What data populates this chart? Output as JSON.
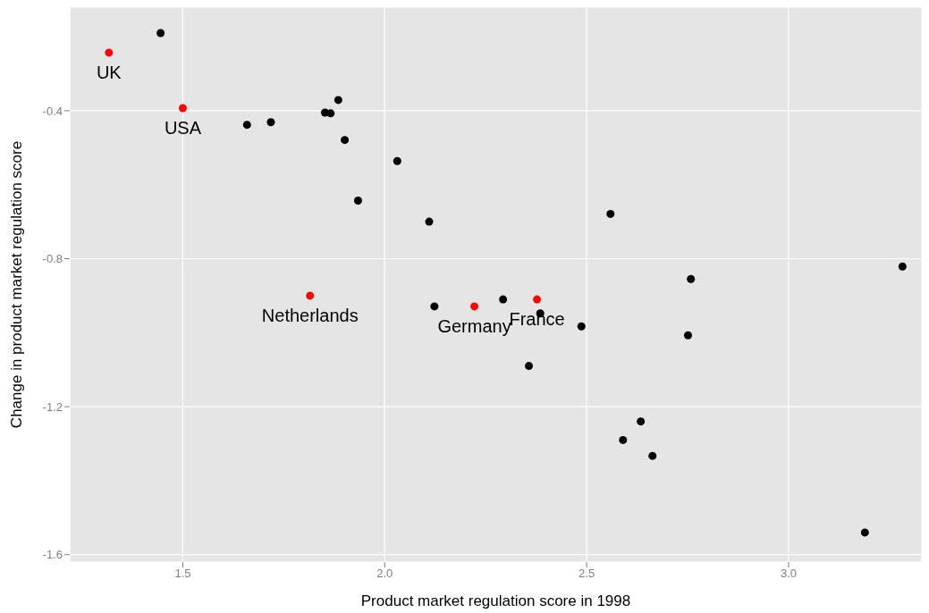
{
  "chart_data": {
    "type": "scatter",
    "xlabel": "Product market regulation score in 1998",
    "ylabel": "Change in product market regulation score",
    "xlim": [
      1.22,
      3.33
    ],
    "xticks": [
      1.5,
      {
        "value": 2,
        "label": "2.0"
      },
      2.5,
      {
        "value": 3,
        "label": "3.0"
      }
    ],
    "ylim": [
      -1.62,
      -0.12
    ],
    "yticks": [
      -1.6,
      -1.2,
      -0.8,
      -0.4
    ],
    "grid": true,
    "legend": false,
    "marker": "circle",
    "series": [
      {
        "color": "#000000",
        "x": [
          1.445,
          1.659,
          1.718,
          1.852,
          1.866,
          1.885,
          1.901,
          2.031,
          1.934,
          2.11,
          2.123,
          2.293,
          2.385,
          2.487,
          2.357,
          2.559,
          2.758,
          2.751,
          3.282,
          2.59,
          2.634,
          2.663,
          3.189
        ],
        "values": [
          -0.19,
          -0.438,
          -0.431,
          -0.405,
          -0.407,
          -0.371,
          -0.479,
          -0.536,
          -0.643,
          -0.7,
          -0.929,
          -0.91,
          -0.948,
          -0.983,
          -1.09,
          -0.679,
          -0.855,
          -1.007,
          -0.821,
          -1.29,
          -1.24,
          -1.333,
          -1.54
        ]
      },
      {
        "color": "#ff0000",
        "x": [
          1.317,
          1.5,
          1.815,
          2.222,
          2.377
        ],
        "values": [
          -0.243,
          -0.393,
          -0.9,
          -0.929,
          -0.91
        ]
      }
    ],
    "annotations": [
      {
        "text": "UK",
        "x": 1.317,
        "y": -0.243
      },
      {
        "text": "USA",
        "x": 1.5,
        "y": -0.393
      },
      {
        "text": "Netherlands",
        "x": 1.815,
        "y": -0.9
      },
      {
        "text": "Germany",
        "x": 2.222,
        "y": -0.929
      },
      {
        "text": "France",
        "x": 2.377,
        "y": -0.91
      }
    ]
  }
}
